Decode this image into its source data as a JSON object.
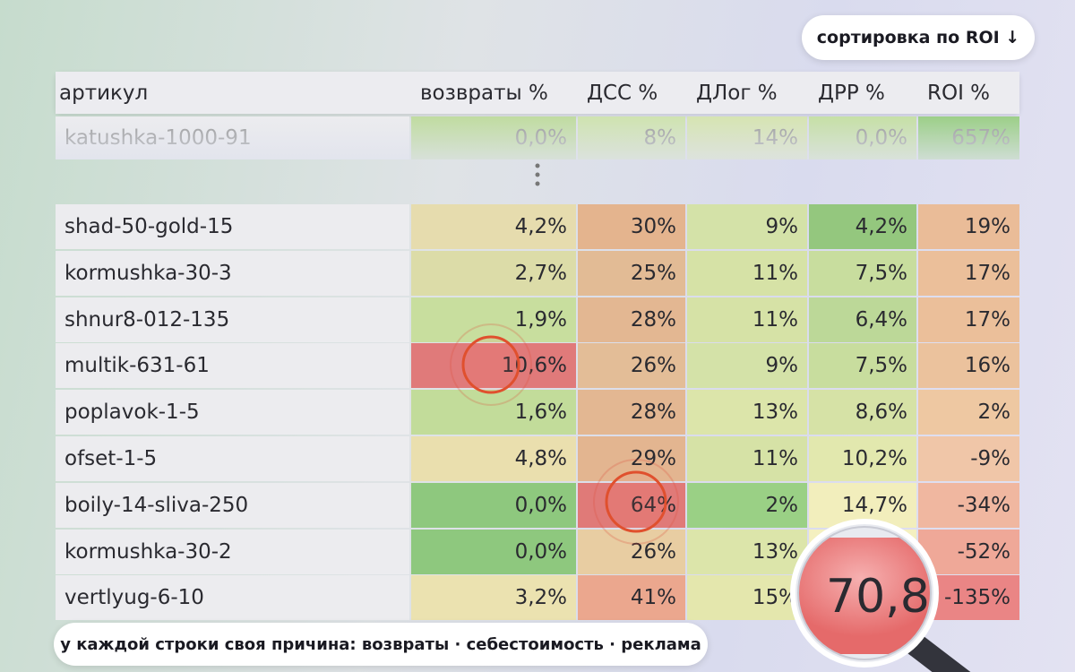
{
  "sort_badge": "сортировка по ROI ↓",
  "table": {
    "headers": [
      "артикул",
      "возвраты %",
      "ДСС %",
      "ДЛог %",
      "ДРР %",
      "ROI %"
    ],
    "top_row": [
      "katushka-1000-91",
      "0,0%",
      "8%",
      "14%",
      "0,0%",
      "657%"
    ],
    "top_row_colors": [
      "#ececef",
      "#c0dca0",
      "#cfe3b0",
      "#d6e4b2",
      "#c6e0a6",
      "#9ccf88"
    ],
    "rows": [
      [
        "shad-50-gold-15",
        "4,2%",
        "30%",
        "9%",
        "4,2%",
        "19%"
      ],
      [
        "kormushka-30-3",
        "2,7%",
        "25%",
        "11%",
        "7,5%",
        "17%"
      ],
      [
        "shnur8-012-135",
        "1,9%",
        "28%",
        "11%",
        "6,4%",
        "17%"
      ],
      [
        "multik-631-61",
        "10,6%",
        "26%",
        "9%",
        "7,5%",
        "16%"
      ],
      [
        "poplavok-1-5",
        "1,6%",
        "28%",
        "13%",
        "8,6%",
        "2%"
      ],
      [
        "ofset-1-5",
        "4,8%",
        "29%",
        "11%",
        "10,2%",
        "-9%"
      ],
      [
        "boily-14-sliva-250",
        "0,0%",
        "64%",
        "2%",
        "14,7%",
        "-34%"
      ],
      [
        "kormushka-30-2",
        "0,0%",
        "26%",
        "13%",
        "",
        "-52%"
      ],
      [
        "vertlyug-6-10",
        "3,2%",
        "41%",
        "15%",
        "",
        "-135%"
      ]
    ],
    "row_colors": [
      [
        "#ececef",
        "#e6dcae",
        "#e4b48e",
        "#d4e2a8",
        "#94c77e",
        "#eabc98"
      ],
      [
        "#ececef",
        "#dcdca8",
        "#e2bb95",
        "#d6e2a6",
        "#c8dd9e",
        "#ebbf9a"
      ],
      [
        "#ececef",
        "#c8de9e",
        "#e3b792",
        "#d6e2a6",
        "#bcd898",
        "#ebbf9a"
      ],
      [
        "#ececef",
        "#e07a7a",
        "#e3bd97",
        "#d4e2a8",
        "#c8dd9e",
        "#ebc29d"
      ],
      [
        "#ececef",
        "#c2dc9a",
        "#e3b792",
        "#dce5aa",
        "#d6e2a6",
        "#eec8a2"
      ],
      [
        "#ececef",
        "#eadfae",
        "#e3b590",
        "#d6e2a6",
        "#e2e8ae",
        "#f0c6a8"
      ],
      [
        "#ececef",
        "#8ec87e",
        "#e07a78",
        "#9ad085",
        "#f2eebc",
        "#f0b7a0"
      ],
      [
        "#ececef",
        "#8ec87e",
        "#e8cda2",
        "#dce5aa",
        "#f4f0c0",
        "#efa898"
      ],
      [
        "#ececef",
        "#ebe2b0",
        "#eba78e",
        "#e4e7ad",
        "#f4eec0",
        "#ea8585"
      ]
    ]
  },
  "magnifier": "70,8%",
  "caption": "у каждой строки своя причина: возвраты · себестоимость · реклама"
}
